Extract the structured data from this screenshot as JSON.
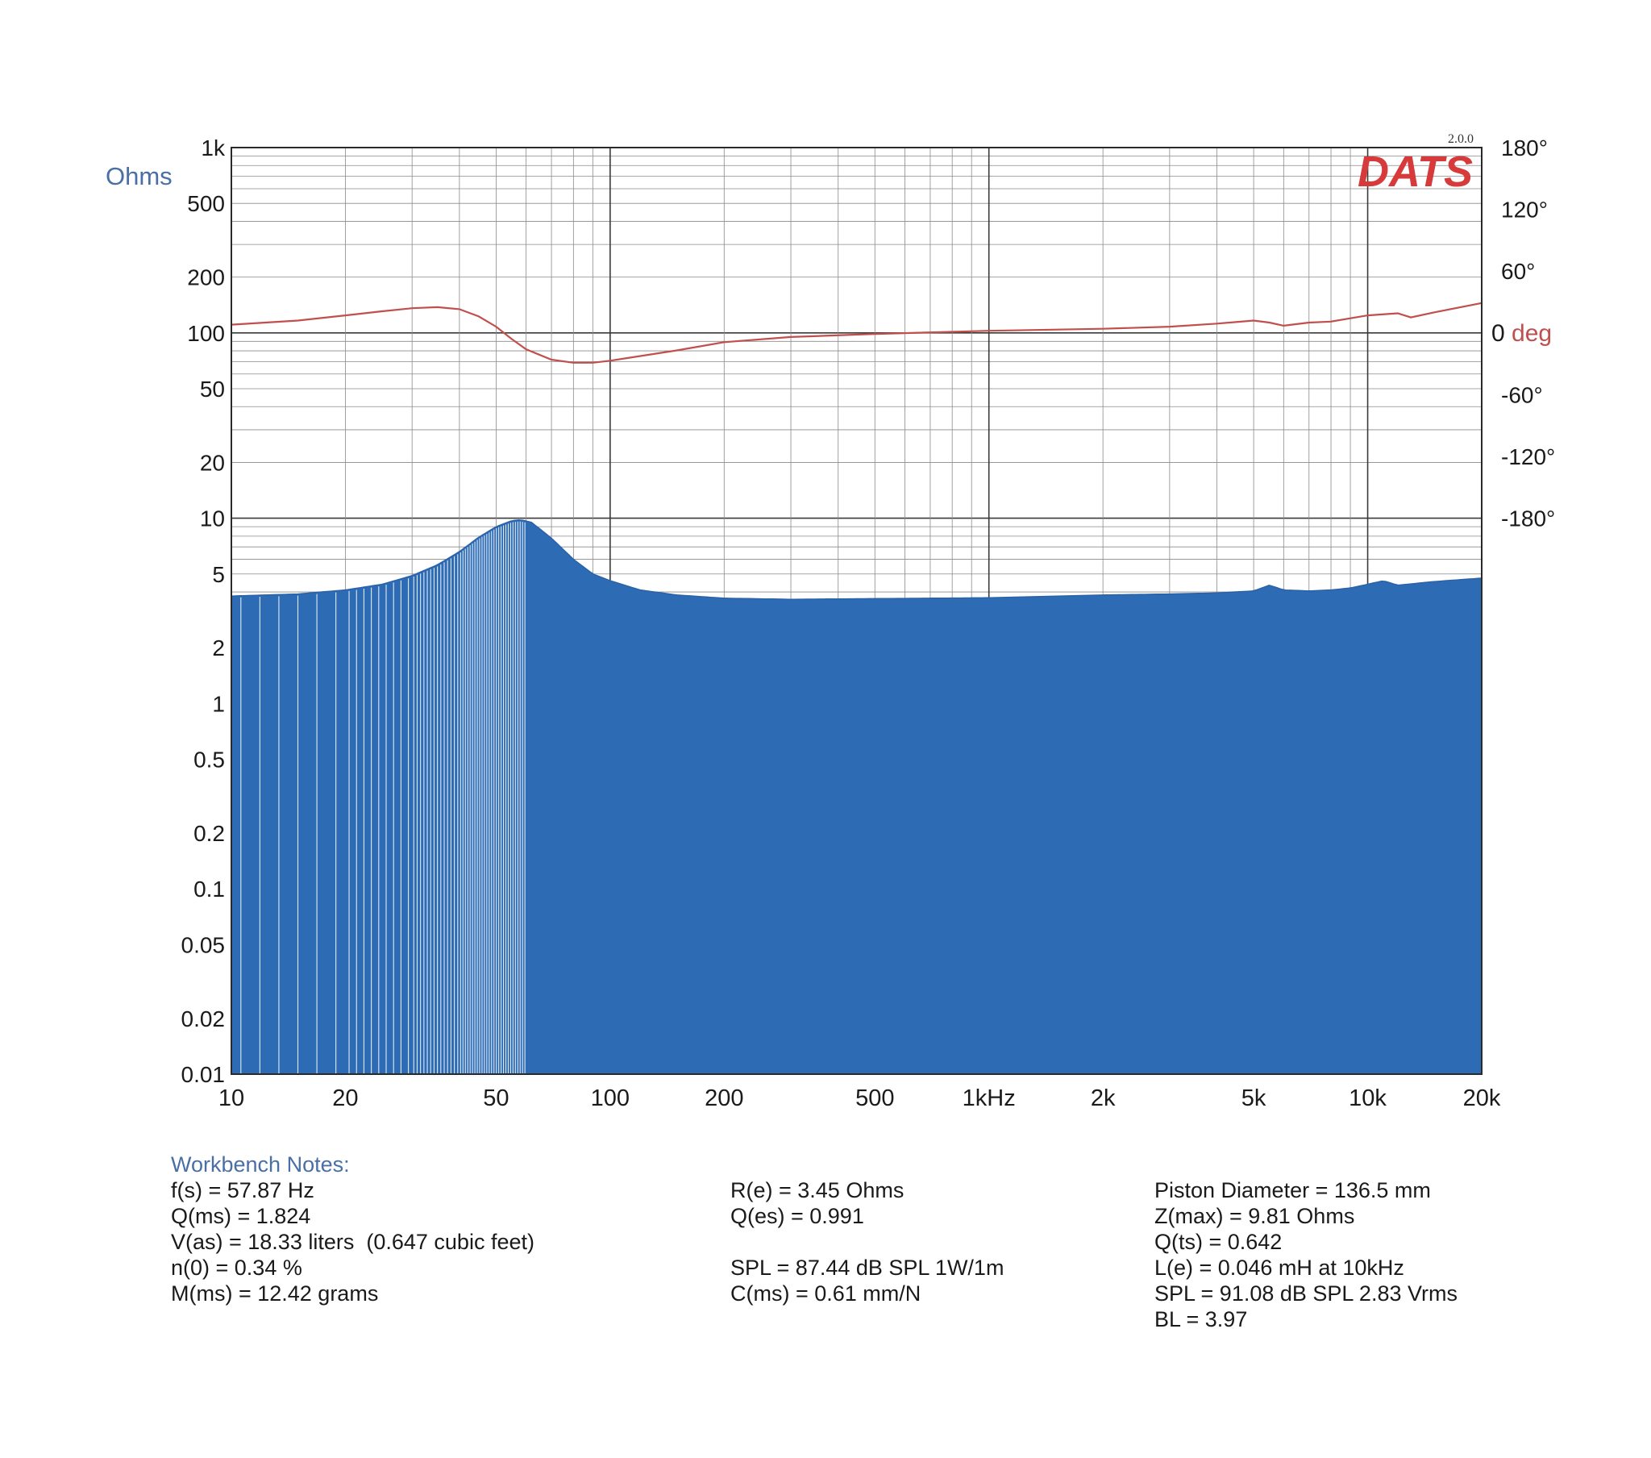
{
  "chart_data": {
    "type": "area",
    "logo": "DATS",
    "version": "2.0.0",
    "left_axis_label": "Ohms",
    "right_axis_label_value": "0",
    "right_axis_label_unit": "deg",
    "x_scale": "log",
    "xlim": [
      10,
      20000
    ],
    "y_scale": "log",
    "ylim": [
      0.01,
      1000
    ],
    "phase_lim": [
      -180,
      180
    ],
    "grid": true,
    "x_ticks": [
      {
        "v": 10,
        "label": "10"
      },
      {
        "v": 20,
        "label": "20"
      },
      {
        "v": 50,
        "label": "50"
      },
      {
        "v": 100,
        "label": "100"
      },
      {
        "v": 200,
        "label": "200"
      },
      {
        "v": 500,
        "label": "500"
      },
      {
        "v": 1000,
        "label": "1kHz"
      },
      {
        "v": 2000,
        "label": "2k"
      },
      {
        "v": 5000,
        "label": "5k"
      },
      {
        "v": 10000,
        "label": "10k"
      },
      {
        "v": 20000,
        "label": "20k"
      }
    ],
    "y_ticks": [
      {
        "v": 1000,
        "label": "1k"
      },
      {
        "v": 500,
        "label": "500"
      },
      {
        "v": 200,
        "label": "200"
      },
      {
        "v": 100,
        "label": "100"
      },
      {
        "v": 50,
        "label": "50"
      },
      {
        "v": 20,
        "label": "20"
      },
      {
        "v": 10,
        "label": "10"
      },
      {
        "v": 5,
        "label": "5"
      },
      {
        "v": 2,
        "label": "2"
      },
      {
        "v": 1,
        "label": "1"
      },
      {
        "v": 0.5,
        "label": "0.5"
      },
      {
        "v": 0.2,
        "label": "0.2"
      },
      {
        "v": 0.1,
        "label": "0.1"
      },
      {
        "v": 0.05,
        "label": "0.05"
      },
      {
        "v": 0.02,
        "label": "0.02"
      },
      {
        "v": 0.01,
        "label": "0.01"
      }
    ],
    "phase_ticks": [
      {
        "v": 180,
        "label": "180°"
      },
      {
        "v": 120,
        "label": "120°"
      },
      {
        "v": 60,
        "label": "60°"
      },
      {
        "v": -60,
        "label": "-60°"
      },
      {
        "v": -120,
        "label": "-120°"
      },
      {
        "v": -180,
        "label": "-180°"
      }
    ],
    "series": [
      {
        "kind": "impedance",
        "color": "#2d6cb5",
        "points": [
          [
            10,
            3.8
          ],
          [
            15,
            3.9
          ],
          [
            20,
            4.1
          ],
          [
            25,
            4.4
          ],
          [
            30,
            4.9
          ],
          [
            35,
            5.6
          ],
          [
            40,
            6.6
          ],
          [
            45,
            7.9
          ],
          [
            50,
            9.0
          ],
          [
            55,
            9.7
          ],
          [
            58,
            9.81
          ],
          [
            62,
            9.5
          ],
          [
            70,
            7.8
          ],
          [
            80,
            6.0
          ],
          [
            90,
            5.0
          ],
          [
            100,
            4.6
          ],
          [
            120,
            4.1
          ],
          [
            150,
            3.85
          ],
          [
            200,
            3.7
          ],
          [
            300,
            3.65
          ],
          [
            500,
            3.68
          ],
          [
            1000,
            3.72
          ],
          [
            2000,
            3.85
          ],
          [
            3000,
            3.9
          ],
          [
            4000,
            3.95
          ],
          [
            5000,
            4.05
          ],
          [
            5500,
            4.35
          ],
          [
            6000,
            4.1
          ],
          [
            7000,
            4.05
          ],
          [
            8000,
            4.1
          ],
          [
            9000,
            4.2
          ],
          [
            10000,
            4.4
          ],
          [
            11000,
            4.6
          ],
          [
            12000,
            4.35
          ],
          [
            15000,
            4.55
          ],
          [
            20000,
            4.75
          ]
        ]
      },
      {
        "kind": "phase",
        "color": "#c0504d",
        "points": [
          [
            10,
            8
          ],
          [
            15,
            12
          ],
          [
            20,
            17
          ],
          [
            25,
            21
          ],
          [
            30,
            24
          ],
          [
            35,
            25
          ],
          [
            40,
            23
          ],
          [
            45,
            16
          ],
          [
            50,
            6
          ],
          [
            55,
            -6
          ],
          [
            60,
            -16
          ],
          [
            70,
            -26
          ],
          [
            80,
            -29
          ],
          [
            90,
            -29
          ],
          [
            100,
            -27
          ],
          [
            150,
            -17
          ],
          [
            200,
            -9
          ],
          [
            300,
            -4
          ],
          [
            500,
            -1
          ],
          [
            1000,
            2
          ],
          [
            2000,
            4
          ],
          [
            3000,
            6
          ],
          [
            4000,
            9
          ],
          [
            5000,
            12
          ],
          [
            5500,
            10
          ],
          [
            6000,
            7
          ],
          [
            7000,
            10
          ],
          [
            8000,
            11
          ],
          [
            10000,
            17
          ],
          [
            12000,
            19
          ],
          [
            13000,
            15
          ],
          [
            15000,
            20
          ],
          [
            20000,
            29
          ]
        ]
      }
    ]
  },
  "notes": {
    "title": "Workbench Notes:",
    "col1": [
      "f(s) = 57.87 Hz",
      "Q(ms) = 1.824",
      "V(as) = 18.33 liters  (0.647 cubic feet)",
      "n(0) = 0.34 %",
      "M(ms) = 12.42 grams"
    ],
    "col2": [
      "R(e) = 3.45 Ohms",
      "Q(es) = 0.991",
      "",
      "SPL = 87.44 dB SPL 1W/1m",
      "C(ms) = 0.61 mm/N"
    ],
    "col3": [
      "Piston Diameter = 136.5 mm",
      "Z(max) = 9.81 Ohms",
      "Q(ts) = 0.642",
      "L(e) = 0.046 mH at 10kHz",
      "SPL = 91.08 dB SPL 2.83 Vrms",
      "BL = 3.97"
    ]
  }
}
